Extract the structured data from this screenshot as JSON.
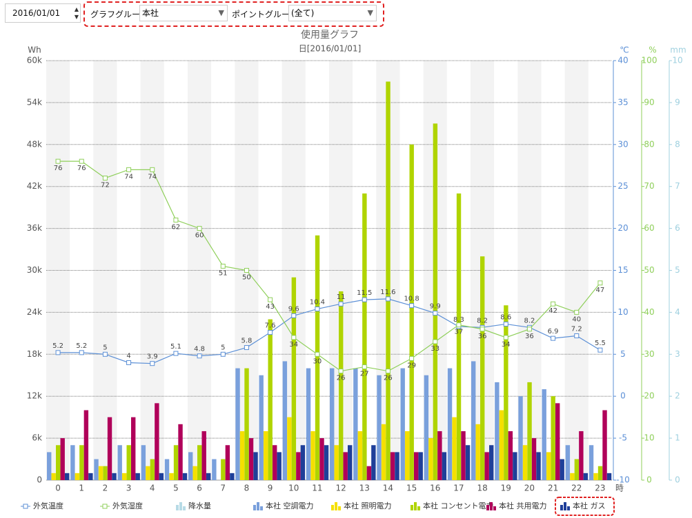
{
  "controls": {
    "date": "2016/01/01",
    "graph_group_label": "グラフグループ:",
    "graph_group": "本社",
    "point_group_label": "ポイントグループ:",
    "point_group": "(全て)"
  },
  "chart_data": {
    "type": "bar",
    "title": "使用量グラフ",
    "subtitle": "日[2016/01/01]",
    "ylabel": "Wh",
    "y2label": "℃",
    "y3label": "%",
    "y4label": "mm",
    "xlabel": "時",
    "categories": [
      "0",
      "1",
      "2",
      "3",
      "4",
      "5",
      "6",
      "7",
      "8",
      "9",
      "10",
      "11",
      "12",
      "13",
      "14",
      "15",
      "16",
      "17",
      "18",
      "19",
      "20",
      "21",
      "22",
      "23"
    ],
    "ylim": [
      0,
      60000
    ],
    "yticks": [
      0,
      {
        "value": 6000,
        "label": "6k"
      },
      {
        "value": 12000,
        "label": "12k"
      },
      {
        "value": 18000,
        "label": "18k"
      },
      {
        "value": 24000,
        "label": "24k"
      },
      {
        "value": 30000,
        "label": "30k"
      },
      {
        "value": 36000,
        "label": "36k"
      },
      {
        "value": 42000,
        "label": "42k"
      },
      {
        "value": 48000,
        "label": "48k"
      },
      {
        "value": 54000,
        "label": "54k"
      },
      {
        "value": 60000,
        "label": "60k"
      }
    ],
    "y2lim": [
      -10,
      40
    ],
    "y2ticks": [
      -10,
      -5,
      0,
      5,
      10,
      15,
      20,
      25,
      30,
      35,
      40
    ],
    "y3lim": [
      0,
      100
    ],
    "y3ticks": [
      0,
      10,
      20,
      30,
      40,
      50,
      60,
      70,
      80,
      90,
      100
    ],
    "y4lim": [
      0,
      10
    ],
    "y4ticks": [
      0,
      1,
      2,
      3,
      4,
      5,
      6,
      7,
      8,
      9,
      10
    ],
    "grid": true,
    "series": [
      {
        "name": "外気温度",
        "type": "line",
        "axis": "y2",
        "color": "#5b8fd6",
        "values": [
          5.2,
          5.2,
          5,
          4,
          3.9,
          5.1,
          4.8,
          5,
          5.8,
          7.6,
          9.6,
          10.4,
          11,
          11.5,
          11.6,
          10.8,
          9.9,
          8.3,
          8.2,
          8.6,
          8.2,
          6.9,
          7.2,
          5.5
        ]
      },
      {
        "name": "外気湿度",
        "type": "line",
        "axis": "y3",
        "color": "#8fcf5a",
        "values": [
          76,
          76,
          72,
          74,
          74,
          62,
          60,
          51,
          50,
          43,
          34,
          30,
          26,
          27,
          26,
          29,
          33,
          37,
          36,
          34,
          36,
          42,
          40,
          47
        ]
      },
      {
        "name": "降水量",
        "type": "bar",
        "axis": "y4",
        "color": "#b7dbe6",
        "values": [
          null,
          null,
          null,
          null,
          null,
          null,
          null,
          null,
          null,
          null,
          null,
          null,
          null,
          null,
          null,
          null,
          null,
          null,
          null,
          null,
          null,
          null,
          null,
          null
        ]
      },
      {
        "name": "本社 空調電力",
        "type": "bar",
        "color": "#7aa0dc",
        "values": [
          4000,
          5000,
          3000,
          5000,
          5000,
          3000,
          4000,
          3000,
          16000,
          15000,
          17000,
          16000,
          16000,
          16000,
          15000,
          16000,
          15000,
          16000,
          17000,
          14000,
          12000,
          13000,
          5000,
          5000
        ]
      },
      {
        "name": "本社 照明電力",
        "type": "bar",
        "color": "#f5e000",
        "values": [
          1000,
          1000,
          2000,
          1000,
          2000,
          1000,
          2000,
          0,
          7000,
          7000,
          9000,
          7000,
          5000,
          7000,
          8000,
          7000,
          6000,
          9000,
          8000,
          10000,
          5000,
          4000,
          1000,
          1000
        ]
      },
      {
        "name": "本社 コンセント電力",
        "type": "bar",
        "color": "#b0d400",
        "values": [
          5000,
          5000,
          2000,
          5000,
          3000,
          5000,
          5000,
          3000,
          16000,
          23000,
          29000,
          35000,
          27000,
          41000,
          57000,
          48000,
          51000,
          41000,
          32000,
          25000,
          14000,
          12000,
          3000,
          2000
        ]
      },
      {
        "name": "本社 共用電力",
        "type": "bar",
        "color": "#b0005a",
        "values": [
          6000,
          10000,
          9000,
          9000,
          11000,
          8000,
          7000,
          5000,
          6000,
          5000,
          4000,
          6000,
          4000,
          2000,
          4000,
          4000,
          7000,
          7000,
          4000,
          7000,
          6000,
          11000,
          7000,
          10000
        ]
      },
      {
        "name": "本社 ガス",
        "type": "bar",
        "color": "#1f3f99",
        "values": [
          1000,
          1000,
          1000,
          1000,
          1000,
          1000,
          1000,
          1000,
          4000,
          4000,
          5000,
          5000,
          5000,
          5000,
          4000,
          4000,
          4000,
          5000,
          5000,
          4000,
          4000,
          3000,
          1000,
          1000
        ]
      }
    ]
  }
}
